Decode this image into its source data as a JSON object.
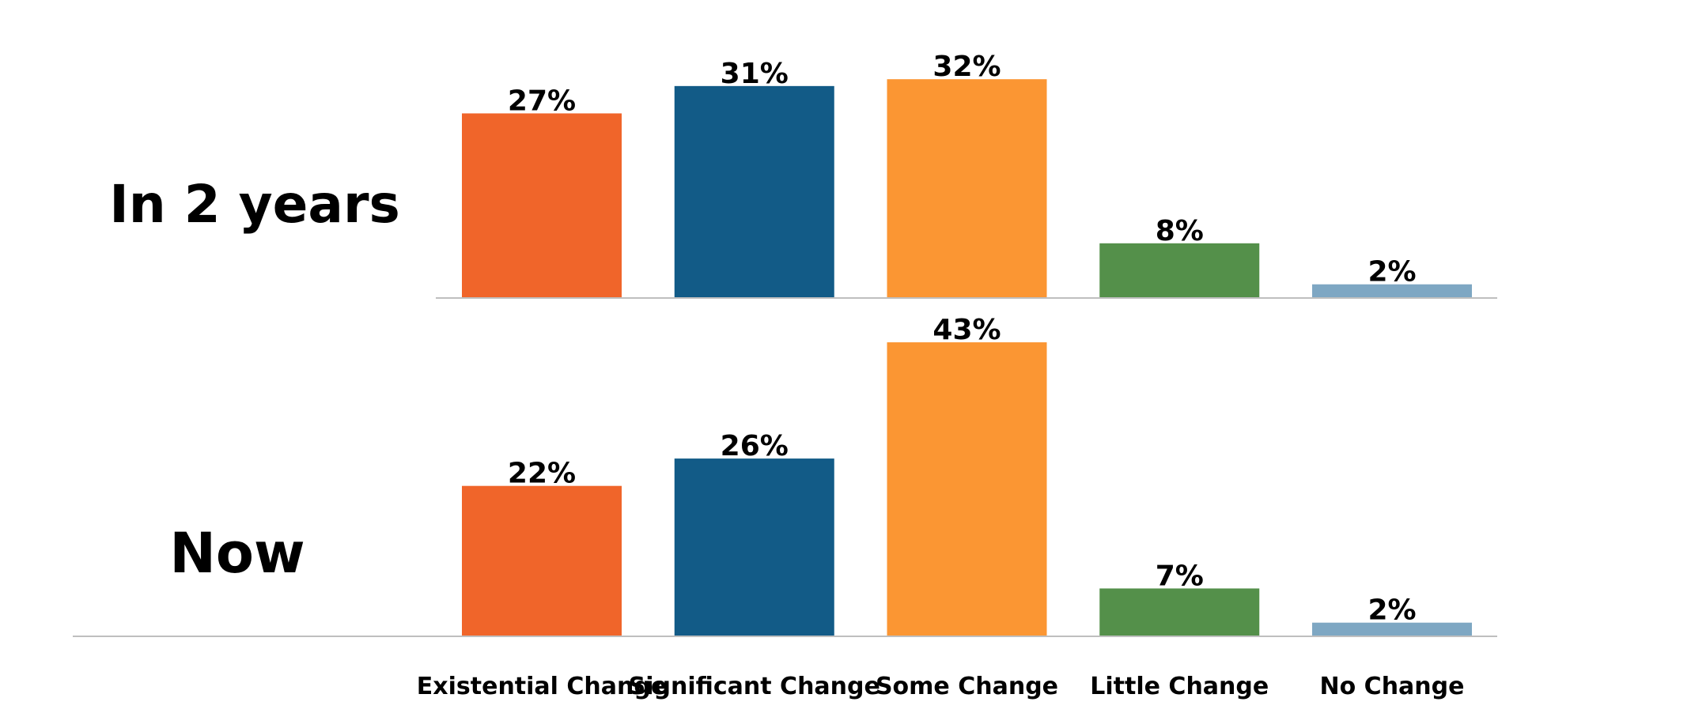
{
  "chart_data": {
    "type": "bar",
    "categories": [
      "Existential Change",
      "Significant Change",
      "Some Change",
      "Little Change",
      "No Change"
    ],
    "colors": [
      "#f0652a",
      "#125b87",
      "#fb9633",
      "#54904a",
      "#7ea7c3"
    ],
    "value_suffix": "%",
    "ylim": [
      0,
      45
    ],
    "panels": [
      {
        "label": "In 2 years",
        "values": [
          27,
          31,
          32,
          8,
          2
        ]
      },
      {
        "label": "Now",
        "values": [
          22,
          26,
          43,
          7,
          2
        ]
      }
    ]
  }
}
